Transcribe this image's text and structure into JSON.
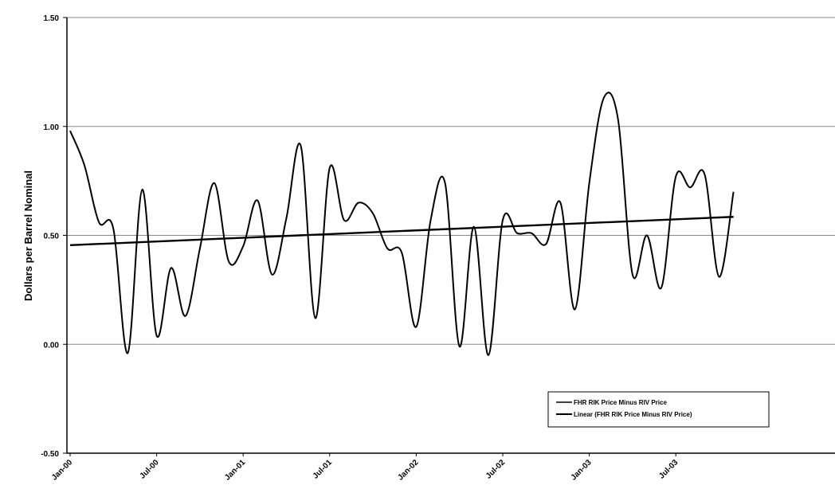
{
  "chart_data": {
    "type": "line",
    "ylabel": "Dollars per Barrel Nominal",
    "ylim": [
      -0.5,
      1.5
    ],
    "yticks": [
      "1.50",
      "1.00",
      "0.50",
      "0.00",
      "-0.50"
    ],
    "ytick_values": [
      1.5,
      1.0,
      0.5,
      0.0,
      -0.5
    ],
    "xticks": [
      "Jan-00",
      "Jul-00",
      "Jan-01",
      "Jul-01",
      "Jan-02",
      "Jul-02",
      "Jan-03",
      "Jul-03"
    ],
    "xtick_index": [
      0,
      6,
      12,
      18,
      24,
      30,
      36,
      42
    ],
    "grid": true,
    "legend_position": "bottom-right",
    "series": [
      {
        "name": "FHR RIK Price Minus RIV Price",
        "x": [
          "Jan-00",
          "Feb-00",
          "Mar-00",
          "Apr-00",
          "May-00",
          "Jun-00",
          "Jul-00",
          "Aug-00",
          "Sep-00",
          "Oct-00",
          "Nov-00",
          "Dec-00",
          "Jan-01",
          "Feb-01",
          "Mar-01",
          "Apr-01",
          "May-01",
          "Jun-01",
          "Jul-01",
          "Aug-01",
          "Sep-01",
          "Oct-01",
          "Nov-01",
          "Dec-01",
          "Jan-02",
          "Feb-02",
          "Mar-02",
          "Apr-02",
          "May-02",
          "Jun-02",
          "Jul-02",
          "Aug-02",
          "Sep-02",
          "Oct-02",
          "Nov-02",
          "Dec-02",
          "Jan-03",
          "Feb-03",
          "Mar-03",
          "Apr-03",
          "May-03",
          "Jun-03",
          "Jul-03",
          "Aug-03",
          "Sep-03",
          "Oct-03",
          "Nov-03"
        ],
        "values": [
          0.98,
          0.82,
          0.56,
          0.53,
          -0.04,
          0.71,
          0.04,
          0.35,
          0.13,
          0.44,
          0.74,
          0.38,
          0.45,
          0.66,
          0.32,
          0.58,
          0.91,
          0.12,
          0.81,
          0.57,
          0.65,
          0.6,
          0.44,
          0.42,
          0.08,
          0.57,
          0.74,
          -0.01,
          0.54,
          -0.05,
          0.57,
          0.51,
          0.51,
          0.46,
          0.65,
          0.16,
          0.74,
          1.13,
          1.03,
          0.32,
          0.5,
          0.26,
          0.77,
          0.72,
          0.78,
          0.31,
          0.7
        ]
      },
      {
        "name": "Linear (FHR RIK Price Minus RIV Price)",
        "trend_start": 0.455,
        "trend_end": 0.585
      }
    ]
  }
}
